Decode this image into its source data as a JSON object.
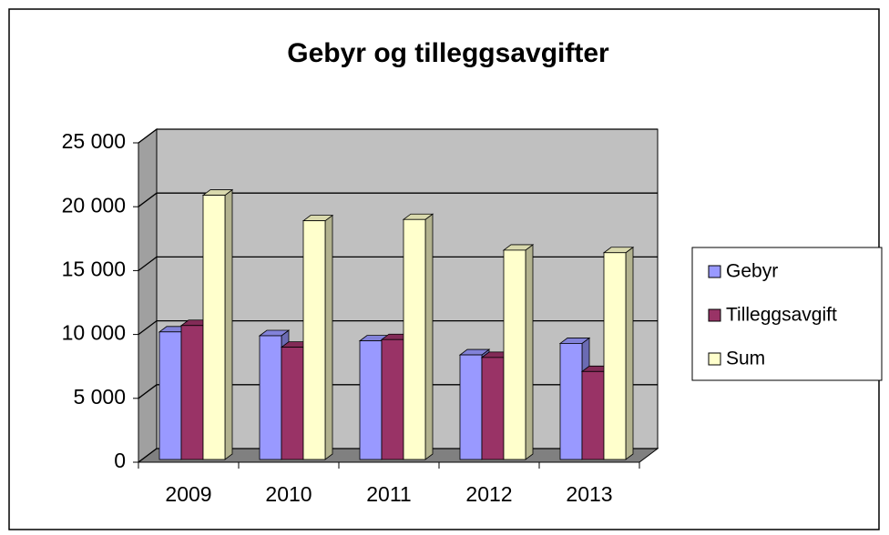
{
  "chart_data": {
    "type": "bar3d",
    "title": "Gebyr og tilleggsavgifter",
    "categories": [
      "2009",
      "2010",
      "2011",
      "2012",
      "2013"
    ],
    "series": [
      {
        "name": "Gebyr",
        "color": "#9999ff",
        "values": [
          10200,
          9900,
          9500,
          8400,
          9300
        ]
      },
      {
        "name": "Tilleggsavgift",
        "color": "#993366",
        "values": [
          10700,
          9000,
          9600,
          8200,
          7100
        ]
      },
      {
        "name": "Sum",
        "color": "#ffffcc",
        "values": [
          20900,
          18900,
          19000,
          16600,
          16400
        ]
      }
    ],
    "ylim": [
      0,
      25000
    ],
    "yticks": [
      0,
      {
        "value": 5000,
        "label": "5 000"
      },
      {
        "value": 10000,
        "label": "10 000"
      },
      {
        "value": 15000,
        "label": "15 000"
      },
      {
        "value": 20000,
        "label": "20 000"
      },
      {
        "value": 25000,
        "label": "25 000"
      }
    ],
    "grid": true,
    "legend": "right"
  }
}
